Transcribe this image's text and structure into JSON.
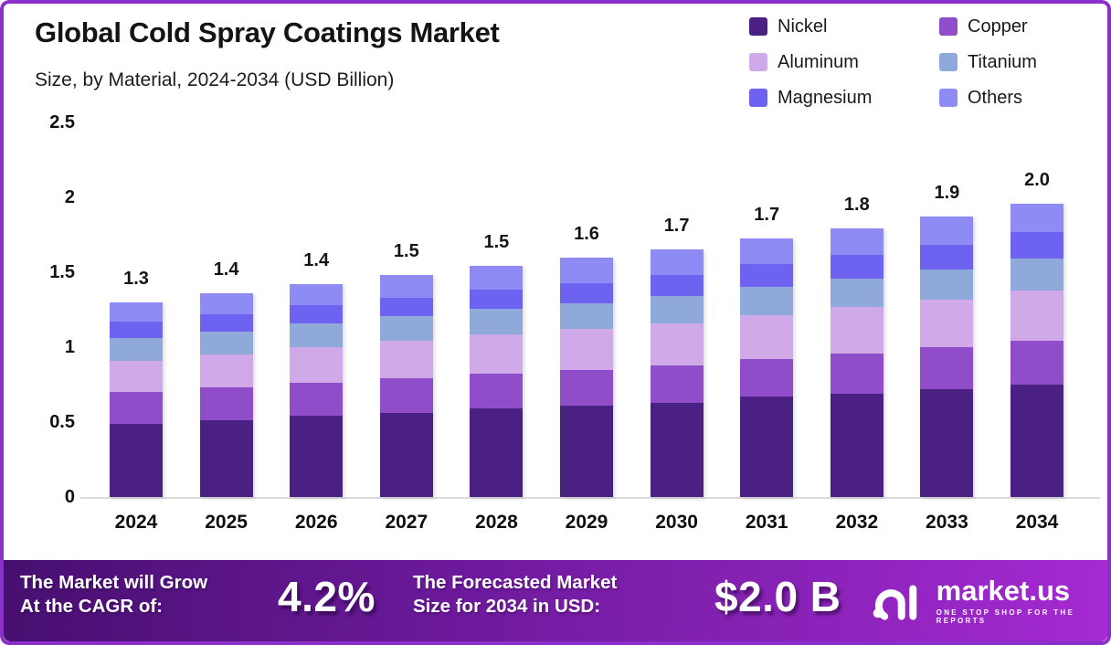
{
  "header": {
    "title": "Global Cold Spray Coatings Market",
    "subtitle": "Size, by Material, 2024-2034 (USD Billion)"
  },
  "legend": {
    "items": [
      {
        "label": "Nickel",
        "color": "#4A2083"
      },
      {
        "label": "Copper",
        "color": "#8F4DC9"
      },
      {
        "label": "Aluminum",
        "color": "#CFA9E8"
      },
      {
        "label": "Titanium",
        "color": "#8FA9DA"
      },
      {
        "label": "Magnesium",
        "color": "#6D63F0"
      },
      {
        "label": "Others",
        "color": "#8E8CF4"
      }
    ]
  },
  "chart_data": {
    "type": "bar",
    "stacked": true,
    "title": "Global Cold Spray Coatings Market Size, by Material, 2024-2034 (USD Billion)",
    "categories": [
      "2024",
      "2025",
      "2026",
      "2027",
      "2028",
      "2029",
      "2030",
      "2031",
      "2032",
      "2033",
      "2034"
    ],
    "series": [
      {
        "name": "Nickel",
        "color": "#4A2083",
        "values": [
          0.49,
          0.51,
          0.54,
          0.56,
          0.59,
          0.61,
          0.63,
          0.67,
          0.69,
          0.72,
          0.75
        ]
      },
      {
        "name": "Copper",
        "color": "#8F4DC9",
        "values": [
          0.21,
          0.22,
          0.22,
          0.23,
          0.235,
          0.24,
          0.25,
          0.25,
          0.27,
          0.28,
          0.29
        ]
      },
      {
        "name": "Aluminum",
        "color": "#CFA9E8",
        "values": [
          0.21,
          0.22,
          0.24,
          0.25,
          0.26,
          0.27,
          0.28,
          0.295,
          0.31,
          0.32,
          0.34
        ]
      },
      {
        "name": "Titanium",
        "color": "#8FA9DA",
        "values": [
          0.15,
          0.155,
          0.16,
          0.165,
          0.17,
          0.17,
          0.18,
          0.185,
          0.19,
          0.2,
          0.21
        ]
      },
      {
        "name": "Magnesium",
        "color": "#6D63F0",
        "values": [
          0.11,
          0.115,
          0.12,
          0.125,
          0.13,
          0.135,
          0.14,
          0.155,
          0.155,
          0.165,
          0.18
        ]
      },
      {
        "name": "Others",
        "color": "#8E8CF4",
        "values": [
          0.13,
          0.14,
          0.14,
          0.15,
          0.155,
          0.17,
          0.17,
          0.17,
          0.175,
          0.185,
          0.19
        ]
      }
    ],
    "total_labels": [
      "1.3",
      "1.4",
      "1.4",
      "1.5",
      "1.5",
      "1.6",
      "1.7",
      "1.7",
      "1.8",
      "1.9",
      "2.0"
    ],
    "yticks": [
      2.5,
      2,
      1.5,
      1,
      0.5,
      0
    ],
    "ytick_labels": [
      "2.5",
      "2",
      "1.5",
      "1",
      "0.5",
      "0"
    ],
    "ylim": [
      0,
      2.5
    ],
    "xlabel": "",
    "ylabel": "USD Billion",
    "grid": false,
    "legend_position": "top-right"
  },
  "banner": {
    "cagr_label_line1": "The Market will Grow",
    "cagr_label_line2": "At the CAGR of:",
    "cagr_value": "4.2%",
    "forecast_label_line1": "The Forecasted Market",
    "forecast_label_line2": "Size for 2034 in USD:",
    "forecast_value": "$2.0 B",
    "logo_text": "market.us",
    "logo_tagline": "ONE STOP SHOP FOR THE REPORTS"
  },
  "colors": {
    "border": "#8C2EC9",
    "banner_gradient_start": "#470F70",
    "banner_gradient_mid": "#6D1A9C",
    "banner_gradient_end": "#A52AD2",
    "axis_line": "#DCDCDC",
    "text": "#141414"
  }
}
